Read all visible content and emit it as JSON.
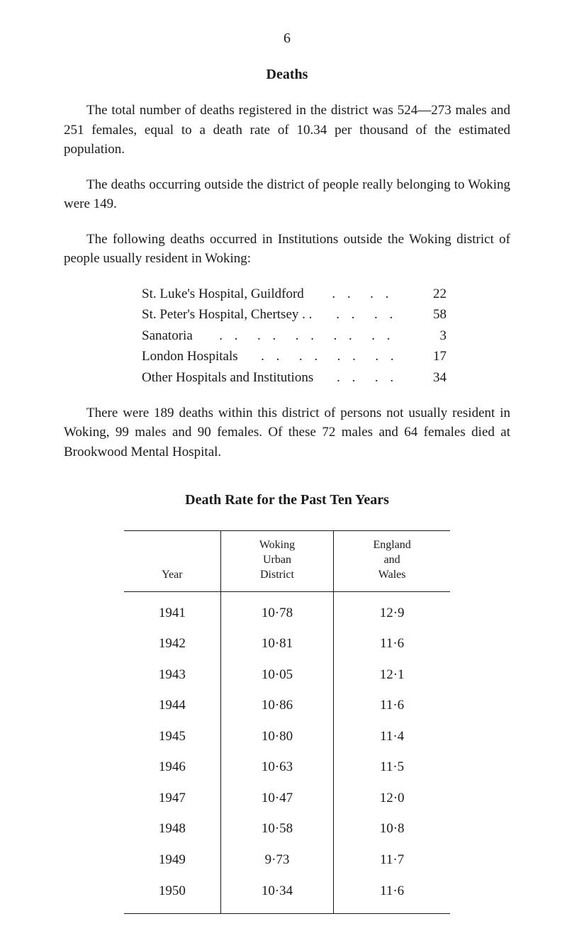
{
  "page_number": "6",
  "section_title": "Deaths",
  "paragraphs": {
    "p1": "The total number of deaths registered in the district was 524—273 males and 251 females, equal to a death rate of 10.34 per thousand of the estimated population.",
    "p2": "The deaths occurring outside the district of people really belonging to Woking were 149.",
    "p3": "The following deaths occurred in Institutions outside the Woking district of people usually resident in Woking:",
    "p4": "There were 189 deaths within this district of persons not usually resident in Woking, 99 males and 90 females. Of these 72 males and 64 females died at Brookwood Mental Hospital."
  },
  "institution_stats": [
    {
      "label": "St. Luke's Hospital, Guildford",
      "value": "22"
    },
    {
      "label": "St. Peter's Hospital, Chertsey . .",
      "value": "58"
    },
    {
      "label": "Sanatoria",
      "value": "3"
    },
    {
      "label": "London Hospitals",
      "value": "17"
    },
    {
      "label": "Other Hospitals and Institutions",
      "value": "34"
    }
  ],
  "table": {
    "title": "Death Rate for the Past Ten Years",
    "columns": [
      "Year",
      "Woking\nUrban\nDistrict",
      "England\nand\nWales"
    ],
    "rows": [
      [
        "1941",
        "10·78",
        "12·9"
      ],
      [
        "1942",
        "10·81",
        "11·6"
      ],
      [
        "1943",
        "10·05",
        "12·1"
      ],
      [
        "1944",
        "10·86",
        "11·6"
      ],
      [
        "1945",
        "10·80",
        "11·4"
      ],
      [
        "1946",
        "10·63",
        "11·5"
      ],
      [
        "1947",
        "10·47",
        "12·0"
      ],
      [
        "1948",
        "10·58",
        "10·8"
      ],
      [
        "1949",
        "9·73",
        "11·7"
      ],
      [
        "1950",
        "10·34",
        "11·6"
      ]
    ]
  },
  "colors": {
    "text": "#1a1a1a",
    "background": "#ffffff",
    "border": "#1a1a1a"
  },
  "typography": {
    "body_fontsize": 19,
    "header_fontsize": 16,
    "font_family": "Times New Roman"
  }
}
